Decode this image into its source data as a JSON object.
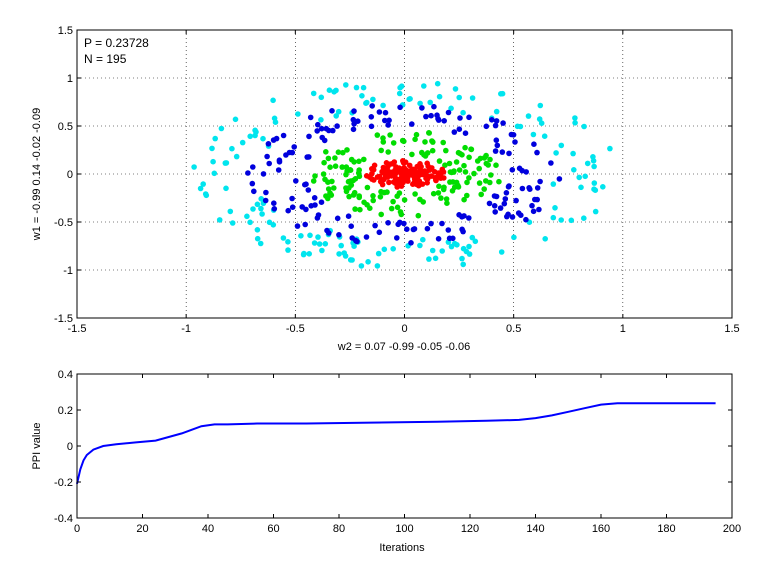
{
  "chart_data": [
    {
      "type": "scatter",
      "title": "",
      "xlabel": "w2 = 0.07  -0.99  -0.05  -0.06",
      "ylabel": "w1 = -0.99  0.14  -0.02  -0.09",
      "xlim": [
        -1.5,
        1.5
      ],
      "ylim": [
        -1.5,
        1.5
      ],
      "xticks": [
        "-1.5",
        "-1",
        "-0.5",
        "0",
        "0.5",
        "1",
        "1.5"
      ],
      "yticks": [
        "-1.5",
        "-1",
        "-0.5",
        "0",
        "0.5",
        "1",
        "1.5"
      ],
      "grid": true,
      "annotations": [
        "P = 0.23728",
        "N = 195"
      ],
      "series": [
        {
          "color": "#00e5ee",
          "rx_range": [
            0.68,
            0.98
          ],
          "ry_range": [
            0.68,
            0.98
          ],
          "count": 170
        },
        {
          "color": "#0000dd",
          "rx_range": [
            0.46,
            0.72
          ],
          "ry_range": [
            0.5,
            0.75
          ],
          "count": 165
        },
        {
          "color": "#00dd00",
          "rx_range": [
            0.2,
            0.45
          ],
          "ry_range": [
            0.2,
            0.45
          ],
          "count": 150
        },
        {
          "color": "#ff0000",
          "rx_range": [
            0.0,
            0.2
          ],
          "ry_range": [
            0.0,
            0.13
          ],
          "count": 170
        }
      ]
    },
    {
      "type": "line",
      "title": "",
      "xlabel": "Iterations",
      "ylabel": "PPI value",
      "xlim": [
        0,
        200
      ],
      "ylim": [
        -0.4,
        0.4
      ],
      "xticks": [
        "0",
        "20",
        "40",
        "60",
        "80",
        "100",
        "120",
        "140",
        "160",
        "180",
        "200"
      ],
      "yticks": [
        "-0.4",
        "-0.2",
        "0",
        "0.2",
        "0.4"
      ],
      "grid": false,
      "color": "#0000ff",
      "series": [
        {
          "x": [
            0,
            1,
            2,
            3,
            5,
            8,
            12,
            18,
            24,
            28,
            32,
            35,
            38,
            42,
            46,
            55,
            70,
            90,
            110,
            125,
            135,
            140,
            145,
            150,
            155,
            160,
            165,
            175,
            185,
            195
          ],
          "y": [
            -0.21,
            -0.13,
            -0.08,
            -0.05,
            -0.02,
            0.0,
            0.01,
            0.02,
            0.03,
            0.05,
            0.07,
            0.09,
            0.11,
            0.12,
            0.12,
            0.125,
            0.125,
            0.13,
            0.135,
            0.14,
            0.145,
            0.155,
            0.17,
            0.19,
            0.21,
            0.23,
            0.237,
            0.237,
            0.237,
            0.237
          ]
        }
      ]
    }
  ]
}
